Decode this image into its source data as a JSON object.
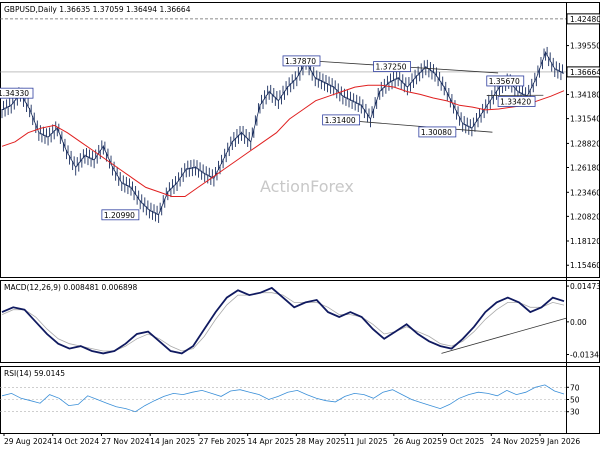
{
  "chart_data": [
    {
      "type": "line",
      "title": "GBPUSD,Daily 1.36635 1.37059 1.36494 1.36664",
      "watermark": "ActionForex",
      "ylim": [
        1.145,
        1.44
      ],
      "y_ticks": [
        "1.42480",
        "1.39550",
        "1.36664",
        "1.34180",
        "1.31540",
        "1.28820",
        "1.26180",
        "1.23460",
        "1.20820",
        "1.18120",
        "1.15460"
      ],
      "current_price": "1.36664",
      "x_tick_labels": [
        "29 Aug 2024",
        "14 Oct 2024",
        "27 Nov 2024",
        "14 Jan 2025",
        "27 Feb 2025",
        "14 Apr 2025",
        "28 May 2025",
        "11 Jul 2025",
        "26 Aug 2025",
        "9 Oct 2025",
        "24 Nov 2025",
        "9 Jan 2026"
      ],
      "annotations": [
        "1.34330",
        "1.20990",
        "1.37870",
        "1.31400",
        "1.37250",
        "1.30080",
        "1.35670",
        "1.33420"
      ],
      "price_series": [
        1.325,
        1.33,
        1.343,
        1.326,
        1.3,
        1.295,
        1.305,
        1.28,
        1.262,
        1.275,
        1.27,
        1.285,
        1.262,
        1.245,
        1.24,
        1.225,
        1.215,
        1.21,
        1.235,
        1.245,
        1.26,
        1.262,
        1.255,
        1.25,
        1.27,
        1.29,
        1.3,
        1.29,
        1.33,
        1.345,
        1.335,
        1.35,
        1.36,
        1.378,
        1.36,
        1.355,
        1.35,
        1.34,
        1.335,
        1.33,
        1.315,
        1.345,
        1.355,
        1.36,
        1.35,
        1.362,
        1.372,
        1.365,
        1.35,
        1.33,
        1.31,
        1.305,
        1.32,
        1.335,
        1.35,
        1.357,
        1.345,
        1.34,
        1.36,
        1.388,
        1.37,
        1.365
      ],
      "ma_series": [
        1.285,
        1.29,
        1.3,
        1.305,
        1.308,
        1.3,
        1.29,
        1.28,
        1.27,
        1.26,
        1.25,
        1.24,
        1.235,
        1.23,
        1.23,
        1.24,
        1.25,
        1.26,
        1.27,
        1.28,
        1.29,
        1.3,
        1.315,
        1.325,
        1.335,
        1.34,
        1.345,
        1.35,
        1.352,
        1.352,
        1.35,
        1.345,
        1.342,
        1.338,
        1.335,
        1.33,
        1.328,
        1.325,
        1.326,
        1.328,
        1.33,
        1.335,
        1.34,
        1.346
      ],
      "trendlines": [
        {
          "from": [
            0,
            1.3787
          ],
          "to": [
            1,
            1.3655
          ]
        },
        {
          "from": [
            0,
            1.314
          ],
          "to": [
            1,
            1.3005
          ]
        },
        {
          "from": [
            0,
            1.3408
          ],
          "to": [
            1,
            1.341
          ]
        }
      ]
    },
    {
      "type": "line",
      "title": "MACD(12,26,9) 0.008481 0.006898",
      "ylim": [
        -0.0153,
        0.016
      ],
      "y_ticks": [
        "0.014734",
        "0.00",
        "-0.013442"
      ],
      "macd_series": [
        0.004,
        0.006,
        0.005,
        0.0,
        -0.005,
        -0.009,
        -0.011,
        -0.01,
        -0.012,
        -0.013,
        -0.012,
        -0.009,
        -0.005,
        -0.004,
        -0.008,
        -0.012,
        -0.013,
        -0.01,
        -0.003,
        0.004,
        0.01,
        0.013,
        0.011,
        0.012,
        0.014,
        0.01,
        0.006,
        0.008,
        0.009,
        0.004,
        0.002,
        0.004,
        0.002,
        -0.003,
        -0.007,
        -0.004,
        -0.001,
        -0.005,
        -0.008,
        -0.01,
        -0.011,
        -0.007,
        -0.002,
        0.004,
        0.008,
        0.01,
        0.008,
        0.004,
        0.006,
        0.01,
        0.0085
      ],
      "signal_series": [
        0.003,
        0.005,
        0.005,
        0.002,
        -0.003,
        -0.007,
        -0.009,
        -0.01,
        -0.011,
        -0.012,
        -0.012,
        -0.01,
        -0.007,
        -0.005,
        -0.007,
        -0.01,
        -0.012,
        -0.011,
        -0.006,
        0.001,
        0.007,
        0.011,
        0.011,
        0.012,
        0.012,
        0.011,
        0.008,
        0.008,
        0.008,
        0.006,
        0.003,
        0.003,
        0.002,
        -0.001,
        -0.005,
        -0.004,
        -0.002,
        -0.004,
        -0.006,
        -0.009,
        -0.01,
        -0.008,
        -0.004,
        0.001,
        0.005,
        0.008,
        0.008,
        0.006,
        0.006,
        0.008,
        0.0069
      ],
      "trendline": {
        "from": [
          0.78,
          -0.013
        ],
        "to": [
          1,
          0.0015
        ]
      }
    },
    {
      "type": "line",
      "title": "RSI(14) 59.0145",
      "ylim": [
        0,
        100
      ],
      "y_ticks": [
        "70",
        "50",
        "30"
      ],
      "rsi_series": [
        56,
        60,
        52,
        48,
        44,
        58,
        52,
        40,
        42,
        56,
        50,
        44,
        38,
        35,
        30,
        40,
        48,
        55,
        60,
        58,
        62,
        65,
        60,
        55,
        64,
        66,
        62,
        58,
        50,
        55,
        62,
        65,
        58,
        52,
        48,
        46,
        55,
        60,
        58,
        52,
        62,
        66,
        58,
        50,
        45,
        40,
        35,
        42,
        52,
        58,
        62,
        60,
        56,
        65,
        58,
        62,
        70,
        74,
        64,
        59
      ]
    }
  ]
}
